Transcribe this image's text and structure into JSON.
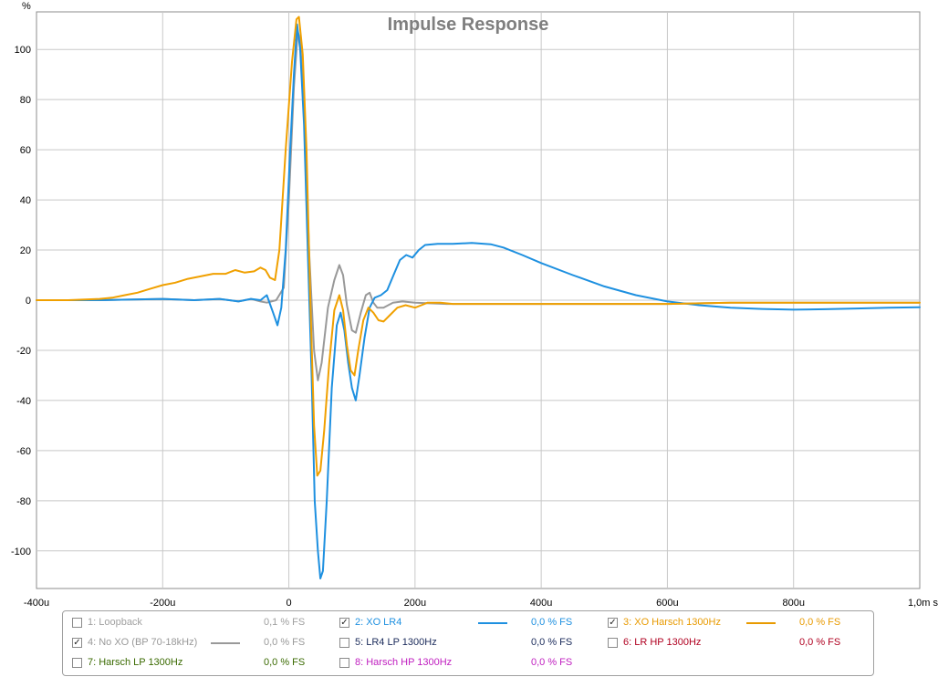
{
  "chart_data": {
    "type": "line",
    "title": "Impulse Response",
    "ylabel": "%",
    "xlabel": "s",
    "xlim": [
      -400,
      1000
    ],
    "ylim": [
      -115,
      115
    ],
    "x_ticks": [
      -400,
      -200,
      0,
      200,
      400,
      600,
      800,
      1000
    ],
    "x_tick_labels": [
      "-400u",
      "-200u",
      "0",
      "200u",
      "400u",
      "600u",
      "800u",
      "1,0m s"
    ],
    "y_ticks": [
      100,
      80,
      60,
      40,
      20,
      0,
      -20,
      -40,
      -60,
      -80,
      -100
    ],
    "y_tick_labels": [
      "100",
      "80",
      "60",
      "40",
      "20",
      "0",
      "-20",
      "-40",
      "-60",
      "-80",
      "-100"
    ],
    "grid": true,
    "series": [
      {
        "name": "4: No XO (BP 70-18kHz)",
        "color": "#999999",
        "points": [
          [
            -400,
            0
          ],
          [
            -300,
            0
          ],
          [
            -200,
            0.5
          ],
          [
            -150,
            0
          ],
          [
            -110,
            0.5
          ],
          [
            -80,
            -0.5
          ],
          [
            -60,
            0.5
          ],
          [
            -45,
            -0.5
          ],
          [
            -35,
            -1
          ],
          [
            -20,
            0
          ],
          [
            -8,
            5
          ],
          [
            0,
            40
          ],
          [
            8,
            85
          ],
          [
            14,
            107
          ],
          [
            18,
            104
          ],
          [
            25,
            70
          ],
          [
            32,
            20
          ],
          [
            40,
            -20
          ],
          [
            46,
            -32
          ],
          [
            52,
            -25
          ],
          [
            62,
            -3
          ],
          [
            72,
            8
          ],
          [
            80,
            14
          ],
          [
            86,
            10
          ],
          [
            92,
            -2
          ],
          [
            100,
            -12
          ],
          [
            106,
            -13
          ],
          [
            114,
            -5
          ],
          [
            122,
            2
          ],
          [
            128,
            3
          ],
          [
            134,
            -1
          ],
          [
            140,
            -3
          ],
          [
            150,
            -3
          ],
          [
            165,
            -1
          ],
          [
            180,
            -0.5
          ],
          [
            200,
            -1
          ],
          [
            250,
            -1.5
          ],
          [
            300,
            -1.5
          ],
          [
            400,
            -1.5
          ],
          [
            500,
            -1.5
          ],
          [
            600,
            -1.5
          ],
          [
            700,
            -1
          ],
          [
            800,
            -1
          ],
          [
            900,
            -1
          ],
          [
            1000,
            -1
          ]
        ]
      },
      {
        "name": "2: XO LR4",
        "color": "#1e90e0",
        "points": [
          [
            -400,
            0
          ],
          [
            -300,
            0
          ],
          [
            -200,
            0.5
          ],
          [
            -150,
            0
          ],
          [
            -110,
            0.5
          ],
          [
            -80,
            -0.5
          ],
          [
            -60,
            0.5
          ],
          [
            -45,
            0
          ],
          [
            -35,
            2
          ],
          [
            -25,
            -5
          ],
          [
            -18,
            -10
          ],
          [
            -12,
            -3
          ],
          [
            -5,
            20
          ],
          [
            2,
            60
          ],
          [
            8,
            90
          ],
          [
            13,
            110
          ],
          [
            18,
            100
          ],
          [
            24,
            70
          ],
          [
            30,
            20
          ],
          [
            36,
            -30
          ],
          [
            41,
            -80
          ],
          [
            46,
            -100
          ],
          [
            50,
            -111
          ],
          [
            54,
            -108
          ],
          [
            60,
            -80
          ],
          [
            68,
            -35
          ],
          [
            76,
            -10
          ],
          [
            82,
            -5
          ],
          [
            88,
            -12
          ],
          [
            94,
            -25
          ],
          [
            100,
            -35
          ],
          [
            106,
            -40
          ],
          [
            112,
            -30
          ],
          [
            120,
            -15
          ],
          [
            128,
            -3
          ],
          [
            136,
            1
          ],
          [
            146,
            2
          ],
          [
            156,
            4
          ],
          [
            166,
            10
          ],
          [
            176,
            16
          ],
          [
            186,
            18
          ],
          [
            196,
            17
          ],
          [
            206,
            20
          ],
          [
            216,
            22
          ],
          [
            236,
            22.5
          ],
          [
            260,
            22.5
          ],
          [
            290,
            22.8
          ],
          [
            320,
            22.3
          ],
          [
            340,
            21
          ],
          [
            370,
            18
          ],
          [
            400,
            14.8
          ],
          [
            450,
            10
          ],
          [
            500,
            5.5
          ],
          [
            550,
            2
          ],
          [
            600,
            -0.5
          ],
          [
            650,
            -2
          ],
          [
            700,
            -3
          ],
          [
            750,
            -3.5
          ],
          [
            800,
            -3.8
          ],
          [
            850,
            -3.6
          ],
          [
            900,
            -3.3
          ],
          [
            950,
            -3
          ],
          [
            1000,
            -2.8
          ]
        ]
      },
      {
        "name": "3: XO Harsch 1300Hz",
        "color": "#f0a000",
        "points": [
          [
            -400,
            0
          ],
          [
            -350,
            0
          ],
          [
            -300,
            0.5
          ],
          [
            -280,
            1
          ],
          [
            -260,
            2
          ],
          [
            -240,
            3
          ],
          [
            -220,
            4.5
          ],
          [
            -200,
            6
          ],
          [
            -180,
            7
          ],
          [
            -160,
            8.5
          ],
          [
            -140,
            9.5
          ],
          [
            -120,
            10.5
          ],
          [
            -100,
            10.5
          ],
          [
            -85,
            12
          ],
          [
            -70,
            11
          ],
          [
            -55,
            11.5
          ],
          [
            -45,
            13
          ],
          [
            -37,
            12
          ],
          [
            -30,
            9
          ],
          [
            -22,
            8
          ],
          [
            -15,
            20
          ],
          [
            -5,
            60
          ],
          [
            5,
            95
          ],
          [
            12,
            112
          ],
          [
            16,
            113
          ],
          [
            22,
            98
          ],
          [
            28,
            60
          ],
          [
            34,
            0
          ],
          [
            40,
            -50
          ],
          [
            45,
            -70
          ],
          [
            50,
            -68
          ],
          [
            56,
            -52
          ],
          [
            64,
            -25
          ],
          [
            72,
            -4
          ],
          [
            80,
            2
          ],
          [
            86,
            -4
          ],
          [
            92,
            -18
          ],
          [
            98,
            -28
          ],
          [
            104,
            -30
          ],
          [
            110,
            -20
          ],
          [
            118,
            -8
          ],
          [
            126,
            -3
          ],
          [
            134,
            -5
          ],
          [
            142,
            -8
          ],
          [
            150,
            -8.5
          ],
          [
            160,
            -6
          ],
          [
            172,
            -3
          ],
          [
            185,
            -2
          ],
          [
            200,
            -3
          ],
          [
            210,
            -2
          ],
          [
            220,
            -1
          ],
          [
            240,
            -1
          ],
          [
            260,
            -1.5
          ],
          [
            300,
            -1.5
          ],
          [
            400,
            -1.5
          ],
          [
            500,
            -1.5
          ],
          [
            600,
            -1.5
          ],
          [
            700,
            -1
          ],
          [
            800,
            -1
          ],
          [
            900,
            -1
          ],
          [
            1000,
            -1
          ]
        ]
      }
    ]
  },
  "legend": {
    "items": [
      {
        "checked": false,
        "label": "1: Loopback",
        "value": "0,1 % FS",
        "color": "#a0a0a0",
        "swatch": false
      },
      {
        "checked": true,
        "label": "2: XO LR4",
        "value": "0,0 % FS",
        "color": "#1e90e0",
        "swatch": true
      },
      {
        "checked": true,
        "label": "3: XO Harsch 1300Hz",
        "value": "0,0 % FS",
        "color": "#e89a00",
        "swatch": true
      },
      {
        "checked": true,
        "label": "4: No XO (BP 70-18kHz)",
        "value": "0,0 % FS",
        "color": "#999999",
        "swatch": true
      },
      {
        "checked": false,
        "label": "5: LR4 LP 1300Hz",
        "value": "0,0 % FS",
        "color": "#1a2a5a",
        "swatch": false
      },
      {
        "checked": false,
        "label": "6: LR HP 1300Hz",
        "value": "0,0 % FS",
        "color": "#b00020",
        "swatch": false
      },
      {
        "checked": false,
        "label": "7: Harsch LP 1300Hz",
        "value": "0,0 % FS",
        "color": "#3a6a00",
        "swatch": false
      },
      {
        "checked": false,
        "label": "8: Harsch HP 1300Hz",
        "value": "0,0 % FS",
        "color": "#c020c0",
        "swatch": false
      }
    ]
  }
}
